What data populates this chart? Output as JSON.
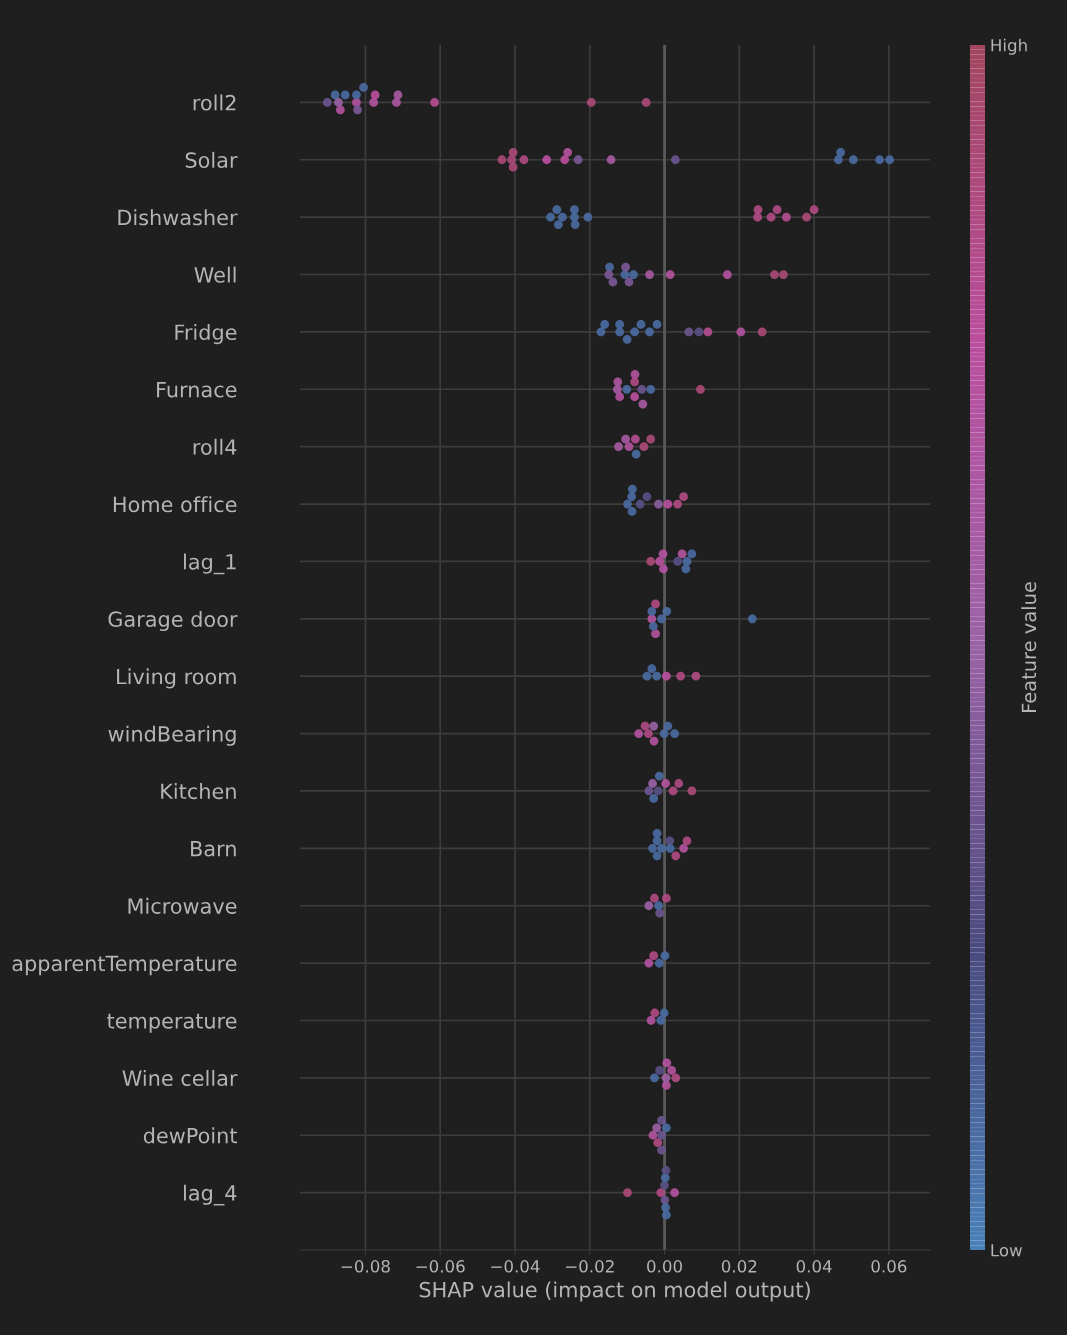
{
  "chart_data": {
    "type": "scatter",
    "orientation": "horizontal",
    "xlabel": "SHAP value (impact on model output)",
    "clabel": "Feature value",
    "categories": [
      "roll2",
      "Solar",
      "Dishwasher",
      "Well",
      "Fridge",
      "Furnace",
      "roll4",
      "Home office",
      "lag_1",
      "Garage door",
      "Living room",
      "windBearing",
      "Kitchen",
      "Barn",
      "Microwave",
      "apparentTemperature",
      "temperature",
      "Wine cellar",
      "dewPoint",
      "lag_4"
    ],
    "xlim": [
      -0.0975,
      0.071
    ],
    "xticks": [
      {
        "value": -0.08,
        "label": "−0.08"
      },
      {
        "value": -0.06,
        "label": "−0.06"
      },
      {
        "value": -0.04,
        "label": "−0.04"
      },
      {
        "value": -0.02,
        "label": "−0.02"
      },
      {
        "value": 0.0,
        "label": "0.00"
      },
      {
        "value": 0.02,
        "label": "0.02"
      },
      {
        "value": 0.04,
        "label": "0.04"
      },
      {
        "value": 0.06,
        "label": "0.06"
      }
    ],
    "clim": [
      0,
      1
    ],
    "cticks": [
      {
        "value": 0,
        "label": "Low"
      },
      {
        "value": 1,
        "label": "High"
      }
    ],
    "grid": true,
    "marker": "circle",
    "ref_lines": [
      {
        "axis": "x",
        "value": 0,
        "label": null
      }
    ],
    "series": [
      {
        "x": [
          "roll2",
          "roll2",
          "roll2",
          "roll2",
          "roll2",
          "roll2",
          "roll2",
          "roll2",
          "roll2",
          "roll2",
          "roll2",
          "roll2",
          "roll2",
          "roll2",
          "roll2",
          "roll2",
          "Solar",
          "Solar",
          "Solar",
          "Solar",
          "Solar",
          "Solar",
          "Solar",
          "Solar",
          "Solar",
          "Solar",
          "Solar",
          "Solar",
          "Solar",
          "Solar",
          "Solar",
          "Solar",
          "Dishwasher",
          "Dishwasher",
          "Dishwasher",
          "Dishwasher",
          "Dishwasher",
          "Dishwasher",
          "Dishwasher",
          "Dishwasher",
          "Dishwasher",
          "Dishwasher",
          "Dishwasher",
          "Dishwasher",
          "Dishwasher",
          "Dishwasher",
          "Dishwasher",
          "Well",
          "Well",
          "Well",
          "Well",
          "Well",
          "Well",
          "Well",
          "Well",
          "Well",
          "Well",
          "Well",
          "Well",
          "Fridge",
          "Fridge",
          "Fridge",
          "Fridge",
          "Fridge",
          "Fridge",
          "Fridge",
          "Fridge",
          "Fridge",
          "Fridge",
          "Fridge",
          "Fridge",
          "Fridge",
          "Fridge",
          "Furnace",
          "Furnace",
          "Furnace",
          "Furnace",
          "Furnace",
          "Furnace",
          "Furnace",
          "Furnace",
          "Furnace",
          "Furnace",
          "Furnace",
          "roll4",
          "roll4",
          "roll4",
          "roll4",
          "roll4",
          "roll4",
          "roll4",
          "Home office",
          "Home office",
          "Home office",
          "Home office",
          "Home office",
          "Home office",
          "Home office",
          "Home office",
          "Home office",
          "Home office",
          "lag_1",
          "lag_1",
          "lag_1",
          "lag_1",
          "lag_1",
          "lag_1",
          "lag_1",
          "lag_1",
          "lag_1",
          "Garage door",
          "Garage door",
          "Garage door",
          "Garage door",
          "Garage door",
          "Garage door",
          "Garage door",
          "Garage door",
          "Living room",
          "Living room",
          "Living room",
          "Living room",
          "Living room",
          "Living room",
          "windBearing",
          "windBearing",
          "windBearing",
          "windBearing",
          "windBearing",
          "windBearing",
          "windBearing",
          "windBearing",
          "Kitchen",
          "Kitchen",
          "Kitchen",
          "Kitchen",
          "Kitchen",
          "Kitchen",
          "Kitchen",
          "Kitchen",
          "Kitchen",
          "Barn",
          "Barn",
          "Barn",
          "Barn",
          "Barn",
          "Barn",
          "Barn",
          "Barn",
          "Barn",
          "Barn",
          "Microwave",
          "Microwave",
          "Microwave",
          "Microwave",
          "Microwave",
          "apparentTemperature",
          "apparentTemperature",
          "apparentTemperature",
          "apparentTemperature",
          "temperature",
          "temperature",
          "temperature",
          "temperature",
          "Wine cellar",
          "Wine cellar",
          "Wine cellar",
          "Wine cellar",
          "Wine cellar",
          "Wine cellar",
          "Wine cellar",
          "dewPoint",
          "dewPoint",
          "dewPoint",
          "dewPoint",
          "dewPoint",
          "dewPoint",
          "dewPoint",
          "lag_4",
          "lag_4",
          "lag_4",
          "lag_4",
          "lag_4",
          "lag_4",
          "lag_4",
          "lag_4",
          "lag_4"
        ],
        "values": [
          -0.0902,
          -0.0881,
          -0.0867,
          -0.0854,
          -0.0824,
          -0.0805,
          -0.0778,
          -0.0713,
          -0.0615,
          -0.0196,
          -0.0049,
          -0.0872,
          -0.0824,
          -0.0774,
          -0.0717,
          -0.0821,
          -0.0435,
          -0.0409,
          -0.0376,
          -0.0315,
          -0.0267,
          -0.0259,
          -0.0231,
          -0.0143,
          0.0029,
          0.0471,
          0.0505,
          0.0575,
          0.0602,
          -0.0405,
          0.0465,
          -0.0405,
          -0.0305,
          -0.0288,
          -0.0273,
          -0.0239,
          -0.0205,
          -0.0284,
          -0.0241,
          -0.0241,
          0.025,
          0.0285,
          0.0301,
          0.0326,
          0.038,
          0.04,
          0.0249,
          -0.0147,
          -0.0138,
          -0.0106,
          -0.0095,
          -0.0083,
          -0.004,
          0.0015,
          0.0168,
          0.0294,
          0.0318,
          -0.0149,
          -0.0104,
          -0.017,
          -0.016,
          -0.012,
          -0.01,
          -0.008,
          -0.0063,
          -0.004,
          -0.002,
          0.0065,
          0.0092,
          0.0116,
          0.0204,
          0.0261,
          -0.012,
          -0.0125,
          -0.012,
          -0.0101,
          -0.008,
          -0.0061,
          -0.0037,
          0.0096,
          -0.0126,
          -0.008,
          -0.0058,
          -0.0079,
          -0.0123,
          -0.0104,
          -0.0095,
          -0.0078,
          -0.0055,
          -0.0037,
          -0.0076,
          -0.0099,
          -0.0088,
          -0.0065,
          -0.0047,
          -0.0016,
          0.0009,
          0.0035,
          0.0051,
          -0.0087,
          -0.0086,
          -0.0037,
          -0.0013,
          -0.0004,
          0.0035,
          0.0057,
          0.0073,
          -0.0003,
          0.0047,
          0.006,
          -0.0034,
          -0.0024,
          -0.0008,
          0.0006,
          0.0235,
          -0.0034,
          -0.0024,
          -0.003,
          -0.0047,
          -0.0034,
          -0.0021,
          0.0005,
          0.0043,
          0.0084,
          -0.0069,
          -0.0052,
          -0.0043,
          -0.0029,
          -0.0001,
          0.0009,
          0.0027,
          -0.0028,
          -0.0042,
          -0.0029,
          -0.0014,
          0.0003,
          0.0023,
          0.0038,
          0.0073,
          -0.0032,
          -0.0017,
          -0.0032,
          -0.002,
          -0.0008,
          0.0014,
          0.003,
          0.0051,
          0.006,
          -0.002,
          0.0015,
          -0.002,
          -0.0042,
          -0.0027,
          -0.0013,
          0.0005,
          -0.0016,
          -0.0042,
          -0.0029,
          -0.0014,
          0.0001,
          -0.0036,
          -0.0026,
          -0.001,
          -0.0001,
          -0.0027,
          -0.0013,
          0.0005,
          0.0019,
          0.003,
          0.0004,
          0.0006,
          -0.0031,
          -0.0018,
          -0.0008,
          0.0005,
          -0.0021,
          -0.0008,
          -0.0008,
          -0.0099,
          -0.001,
          0.0001,
          0.0027,
          0.0,
          0.0002,
          0.0003,
          0.0004,
          0.0005
        ],
        "cvalues": [
          0.35,
          0.1,
          0.7,
          0.1,
          0.7,
          0.1,
          0.7,
          0.6,
          0.8,
          0.9,
          0.9,
          0.5,
          0.1,
          0.75,
          0.65,
          0.4,
          0.9,
          0.9,
          0.85,
          0.75,
          0.75,
          0.7,
          0.4,
          0.6,
          0.35,
          0.1,
          0.1,
          0.1,
          0.1,
          0.9,
          0.1,
          0.9,
          0.1,
          0.1,
          0.1,
          0.1,
          0.1,
          0.1,
          0.1,
          0.1,
          0.85,
          0.85,
          0.85,
          0.8,
          0.9,
          0.85,
          0.85,
          0.1,
          0.4,
          0.1,
          0.4,
          0.1,
          0.6,
          0.7,
          0.7,
          0.9,
          0.9,
          0.4,
          0.4,
          0.1,
          0.1,
          0.1,
          0.1,
          0.1,
          0.1,
          0.1,
          0.1,
          0.35,
          0.3,
          0.8,
          0.7,
          0.9,
          0.1,
          0.65,
          0.7,
          0.1,
          0.85,
          0.35,
          0.1,
          0.9,
          0.6,
          0.75,
          0.6,
          0.7,
          0.6,
          0.6,
          0.7,
          0.8,
          0.9,
          0.9,
          0.1,
          0.1,
          0.1,
          0.3,
          0.3,
          0.45,
          0.75,
          0.85,
          0.85,
          0.1,
          0.1,
          0.9,
          0.75,
          0.7,
          0.3,
          0.1,
          0.1,
          0.7,
          0.7,
          0.1,
          0.7,
          0.85,
          0.1,
          0.1,
          0.1,
          0.1,
          0.7,
          0.1,
          0.1,
          0.1,
          0.1,
          0.75,
          0.85,
          0.85,
          0.7,
          0.85,
          0.85,
          0.5,
          0.1,
          0.1,
          0.1,
          0.7,
          0.35,
          0.1,
          0.1,
          0.7,
          0.85,
          0.85,
          0.9,
          0.5,
          0.3,
          0.1,
          0.1,
          0.1,
          0.3,
          0.85,
          0.7,
          0.85,
          0.1,
          0.1,
          0.1,
          0.5,
          0.85,
          0.35,
          0.85,
          0.1,
          0.7,
          0.85,
          0.1,
          0.1,
          0.7,
          0.85,
          0.1,
          0.1,
          0.1,
          0.3,
          0.7,
          0.7,
          0.85,
          0.55,
          0.7,
          0.7,
          0.85,
          0.35,
          0.1,
          0.5,
          0.35,
          0.35,
          0.9,
          0.85,
          0.35,
          0.7,
          0.3,
          0.1,
          0.1,
          0.3,
          0.1
        ]
      }
    ]
  }
}
